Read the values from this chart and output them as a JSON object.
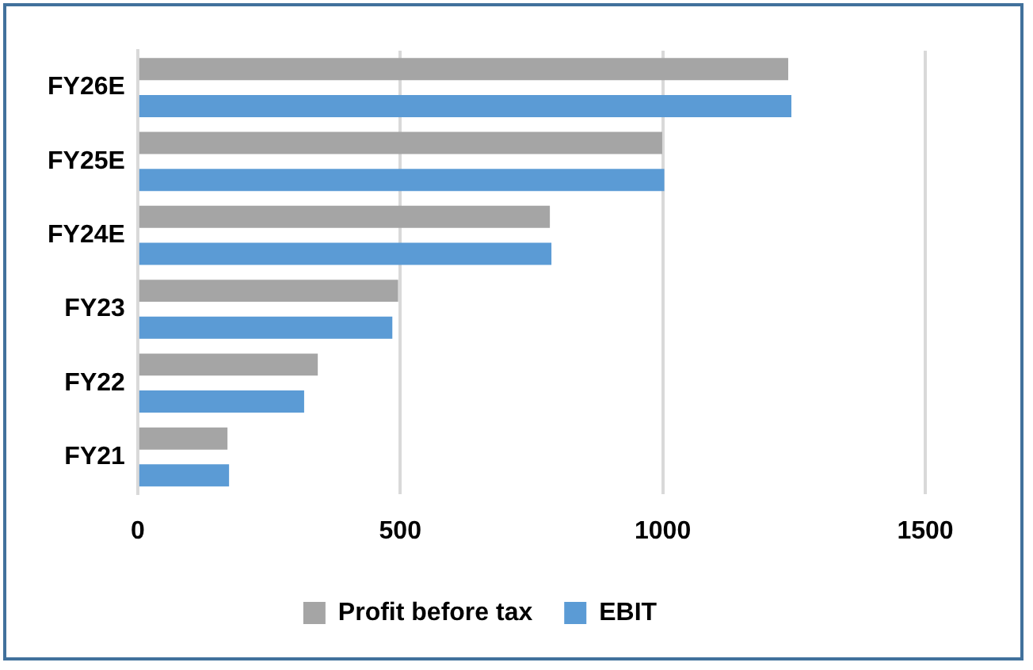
{
  "chart_data": {
    "type": "bar",
    "orientation": "horizontal",
    "categories": [
      "FY26E",
      "FY25E",
      "FY24E",
      "FY23",
      "FY22",
      "FY21"
    ],
    "series": [
      {
        "name": "Profit before tax",
        "color": "#a5a5a5",
        "values": [
          1239,
          999,
          785,
          496,
          343,
          171
        ]
      },
      {
        "name": "EBIT",
        "color": "#5b9bd5",
        "values": [
          1245,
          1003,
          788,
          485,
          317,
          174
        ]
      }
    ],
    "xlim": [
      0,
      1500
    ],
    "xticks": [
      0,
      500,
      1000,
      1500
    ],
    "grid": "x",
    "legend": "bottom"
  }
}
